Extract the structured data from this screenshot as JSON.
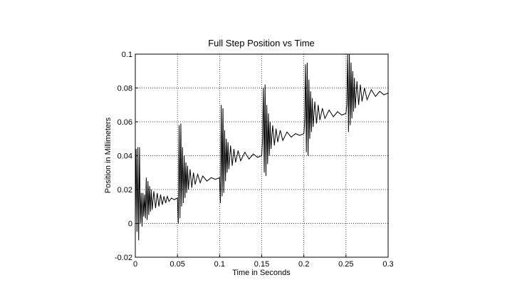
{
  "chart_data": {
    "type": "line",
    "title": "Full Step Position vs Time",
    "x_label": "Time in Seconds",
    "y_label": "Position in Millimeters",
    "xlim": [
      0,
      0.3
    ],
    "ylim": [
      -0.02,
      0.1
    ],
    "xticks": [
      0,
      0.05,
      0.1,
      0.15,
      0.2,
      0.25,
      0.3
    ],
    "yticks": [
      -0.02,
      0,
      0.02,
      0.04,
      0.06,
      0.08,
      0.1
    ],
    "grid": true,
    "color": "#000000",
    "x": [
      0,
      0.001,
      0.002,
      0.003,
      0.004,
      0.005,
      0.006,
      0.007,
      0.008,
      0.009,
      0.01,
      0.011,
      0.012,
      0.013,
      0.014,
      0.015,
      0.016,
      0.017,
      0.018,
      0.019,
      0.02,
      0.022,
      0.024,
      0.026,
      0.028,
      0.03,
      0.032,
      0.034,
      0.036,
      0.038,
      0.04,
      0.043,
      0.046,
      0.05,
      0.051,
      0.052,
      0.053,
      0.054,
      0.055,
      0.056,
      0.057,
      0.058,
      0.059,
      0.06,
      0.061,
      0.062,
      0.063,
      0.065,
      0.067,
      0.069,
      0.071,
      0.074,
      0.077,
      0.08,
      0.085,
      0.09,
      0.095,
      0.1,
      0.101,
      0.102,
      0.103,
      0.104,
      0.105,
      0.106,
      0.107,
      0.108,
      0.109,
      0.11,
      0.111,
      0.113,
      0.115,
      0.117,
      0.119,
      0.122,
      0.125,
      0.13,
      0.135,
      0.14,
      0.145,
      0.15,
      0.151,
      0.152,
      0.153,
      0.154,
      0.155,
      0.156,
      0.157,
      0.158,
      0.159,
      0.16,
      0.161,
      0.163,
      0.165,
      0.167,
      0.169,
      0.172,
      0.175,
      0.18,
      0.185,
      0.19,
      0.195,
      0.2,
      0.201,
      0.202,
      0.203,
      0.204,
      0.205,
      0.206,
      0.207,
      0.208,
      0.209,
      0.21,
      0.211,
      0.213,
      0.215,
      0.217,
      0.219,
      0.222,
      0.225,
      0.23,
      0.235,
      0.24,
      0.245,
      0.25,
      0.251,
      0.252,
      0.253,
      0.254,
      0.255,
      0.256,
      0.257,
      0.258,
      0.259,
      0.26,
      0.261,
      0.263,
      0.265,
      0.267,
      0.269,
      0.272,
      0.275,
      0.28,
      0.285,
      0.29,
      0.295,
      0.3
    ],
    "values": [
      0,
      0.044,
      -0.005,
      0.045,
      -0.01,
      0.045,
      0,
      0.018,
      -0.002,
      0.018,
      0.004,
      0.017,
      0.003,
      0.027,
      0.002,
      0.025,
      0.005,
      0.022,
      0.007,
      0.02,
      0.008,
      0.019,
      0.009,
      0.018,
      0.01,
      0.017,
      0.011,
      0.016,
      0.012,
      0.016,
      0.013,
      0.015,
      0.014,
      0.015,
      0,
      0.058,
      0.003,
      0.059,
      0.01,
      0.045,
      0.012,
      0.04,
      0.015,
      0.036,
      0.018,
      0.034,
      0.02,
      0.032,
      0.021,
      0.03,
      0.023,
      0.029,
      0.024,
      0.028,
      0.025,
      0.027,
      0.026,
      0.027,
      0.012,
      0.07,
      0.016,
      0.068,
      0.018,
      0.055,
      0.025,
      0.05,
      0.03,
      0.048,
      0.032,
      0.046,
      0.034,
      0.044,
      0.036,
      0.043,
      0.037,
      0.042,
      0.038,
      0.041,
      0.039,
      0.04,
      0.05,
      0.08,
      0.03,
      0.082,
      0.028,
      0.07,
      0.035,
      0.065,
      0.04,
      0.06,
      0.044,
      0.058,
      0.046,
      0.056,
      0.048,
      0.055,
      0.049,
      0.054,
      0.051,
      0.053,
      0.052,
      0.053,
      0.06,
      0.094,
      0.042,
      0.095,
      0.04,
      0.085,
      0.05,
      0.078,
      0.054,
      0.074,
      0.057,
      0.072,
      0.059,
      0.07,
      0.061,
      0.068,
      0.062,
      0.067,
      0.063,
      0.066,
      0.064,
      0.065,
      0.07,
      0.1,
      0.054,
      0.1,
      0.058,
      0.095,
      0.062,
      0.09,
      0.066,
      0.086,
      0.068,
      0.084,
      0.07,
      0.082,
      0.072,
      0.08,
      0.073,
      0.079,
      0.075,
      0.078,
      0.076,
      0.077
    ]
  }
}
